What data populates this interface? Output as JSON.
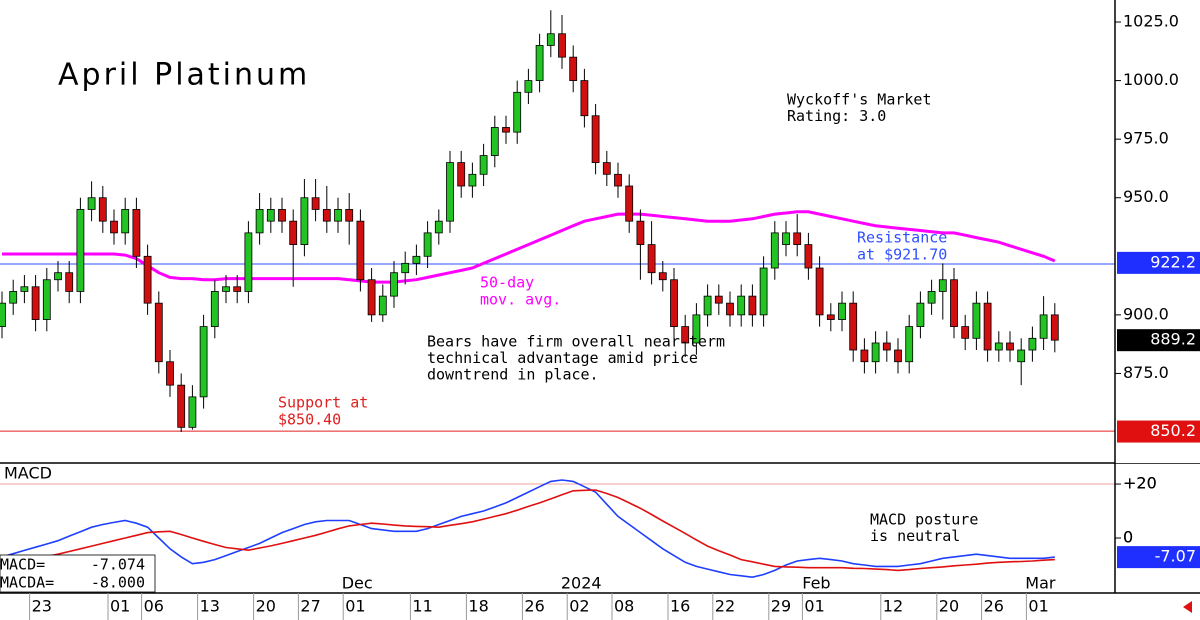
{
  "chart_data": {
    "type": "candlestick",
    "title": "April Platinum",
    "ylim": [
      837.2,
      1034.4
    ],
    "yticks": [
      {
        "value": 1025,
        "label": "1025.0"
      },
      {
        "value": 1000,
        "label": "1000.0"
      },
      {
        "value": 975,
        "label": "975.0"
      },
      {
        "value": 950,
        "label": "950.0"
      },
      {
        "value": 900,
        "label": "900.0"
      },
      {
        "value": 875,
        "label": "875.0"
      }
    ],
    "xticks": [
      {
        "value": 3,
        "label": "23"
      },
      {
        "value": 10,
        "label": "01"
      },
      {
        "value": 13,
        "label": "06"
      },
      {
        "value": 18,
        "label": "13"
      },
      {
        "value": 23,
        "label": "20"
      },
      {
        "value": 27,
        "label": "27"
      },
      {
        "value": 31,
        "label": "01"
      },
      {
        "value": 37,
        "label": "11"
      },
      {
        "value": 42,
        "label": "18"
      },
      {
        "value": 47,
        "label": "26"
      },
      {
        "value": 51,
        "label": "02"
      },
      {
        "value": 55,
        "label": "08"
      },
      {
        "value": 60,
        "label": "16"
      },
      {
        "value": 64,
        "label": "22"
      },
      {
        "value": 69,
        "label": "29"
      },
      {
        "value": 72,
        "label": "01"
      },
      {
        "value": 79,
        "label": "12"
      },
      {
        "value": 84,
        "label": "20"
      },
      {
        "value": 88,
        "label": "26"
      },
      {
        "value": 92,
        "label": "01"
      }
    ],
    "month_ticks": [
      {
        "value": 31,
        "label": "Dec"
      },
      {
        "value": 51,
        "label": "2024"
      },
      {
        "value": 72,
        "label": "Feb"
      },
      {
        "value": 92,
        "label": "Mar"
      }
    ],
    "up_color": "#22c322",
    "down_color": "#d01010",
    "candles": {
      "open": [
        895,
        905,
        910,
        912,
        898,
        915,
        918,
        910,
        945,
        950,
        940,
        935,
        945,
        925,
        905,
        880,
        870,
        852,
        865,
        895,
        910,
        912,
        910,
        935,
        940,
        945,
        940,
        930,
        950,
        945,
        940,
        945,
        940,
        915,
        900,
        908,
        918,
        922,
        925,
        935,
        940,
        965,
        955,
        960,
        968,
        980,
        978,
        995,
        1000,
        1015,
        1020,
        1010,
        1000,
        985,
        965,
        960,
        955,
        940,
        930,
        918,
        915,
        895,
        888,
        900,
        908,
        905,
        900,
        908,
        900,
        920,
        930,
        935,
        930,
        920,
        900,
        898,
        905,
        885,
        880,
        888,
        885,
        880,
        895,
        905,
        910,
        915,
        895,
        890,
        905,
        885,
        888,
        880,
        885,
        890,
        900
      ],
      "high": [
        910,
        915,
        917,
        917,
        920,
        923,
        923,
        950,
        957,
        955,
        945,
        950,
        950,
        930,
        910,
        885,
        875,
        870,
        900,
        915,
        917,
        917,
        940,
        952,
        950,
        950,
        945,
        958,
        958,
        955,
        950,
        952,
        945,
        920,
        913,
        923,
        927,
        930,
        940,
        945,
        970,
        970,
        965,
        973,
        985,
        985,
        1000,
        1005,
        1020,
        1030,
        1028,
        1015,
        1005,
        990,
        970,
        965,
        960,
        945,
        940,
        923,
        920,
        900,
        905,
        913,
        913,
        910,
        913,
        913,
        925,
        940,
        940,
        943,
        935,
        925,
        905,
        910,
        910,
        890,
        893,
        893,
        890,
        900,
        910,
        915,
        922,
        920,
        900,
        910,
        910,
        893,
        893,
        890,
        895,
        908,
        905
      ],
      "low": [
        890,
        900,
        905,
        893,
        893,
        910,
        905,
        905,
        940,
        935,
        930,
        930,
        920,
        900,
        875,
        865,
        850,
        851,
        860,
        890,
        905,
        905,
        905,
        930,
        935,
        935,
        912,
        925,
        940,
        935,
        935,
        930,
        910,
        897,
        897,
        903,
        913,
        917,
        920,
        930,
        935,
        950,
        950,
        955,
        963,
        973,
        973,
        990,
        995,
        1010,
        1005,
        995,
        980,
        960,
        955,
        950,
        935,
        915,
        913,
        910,
        890,
        882,
        883,
        895,
        900,
        895,
        895,
        895,
        895,
        915,
        925,
        925,
        915,
        895,
        893,
        893,
        880,
        875,
        875,
        880,
        875,
        875,
        890,
        900,
        898,
        890,
        885,
        885,
        880,
        880,
        880,
        870,
        880,
        885,
        884
      ],
      "close": [
        905,
        910,
        912,
        898,
        915,
        918,
        910,
        945,
        950,
        940,
        935,
        945,
        925,
        905,
        880,
        870,
        852,
        865,
        895,
        910,
        912,
        910,
        935,
        945,
        945,
        940,
        930,
        950,
        945,
        940,
        945,
        940,
        915,
        900,
        908,
        918,
        922,
        925,
        935,
        940,
        965,
        955,
        960,
        968,
        980,
        978,
        995,
        1000,
        1015,
        1020,
        1010,
        1000,
        985,
        965,
        960,
        955,
        940,
        930,
        918,
        915,
        895,
        888,
        900,
        908,
        905,
        900,
        908,
        900,
        920,
        935,
        935,
        930,
        920,
        900,
        898,
        905,
        885,
        880,
        888,
        885,
        880,
        895,
        905,
        910,
        915,
        895,
        890,
        905,
        885,
        888,
        885,
        885,
        890,
        900,
        889.2
      ]
    },
    "ma": {
      "name_lines": [
        "50-day",
        "mov. avg."
      ],
      "color": "#ff00ff",
      "values": [
        926,
        926,
        926,
        926,
        926,
        926,
        926,
        926,
        926,
        926,
        926,
        925.5,
        924,
        921,
        918,
        916,
        915.5,
        915.5,
        915,
        915,
        915.5,
        915.5,
        915.5,
        915.5,
        915.5,
        915.5,
        915.5,
        915.5,
        915.5,
        915.5,
        915.5,
        915,
        914.5,
        914,
        914,
        914,
        914.5,
        915,
        916,
        917,
        918,
        919,
        920,
        922,
        924,
        926,
        928,
        930,
        932,
        934,
        936,
        938,
        940,
        941,
        942,
        943,
        943,
        943,
        942.5,
        942,
        941.5,
        941,
        940.5,
        940,
        940,
        940,
        940.5,
        941,
        942,
        943,
        943.5,
        944,
        944,
        943,
        942,
        941,
        940,
        939,
        938,
        937.5,
        937,
        936.5,
        936,
        935.5,
        935,
        935,
        934,
        933,
        932,
        931,
        929.5,
        928,
        926.5,
        925,
        923
      ]
    },
    "levels": [
      {
        "value": 921.7,
        "color": "#3050ff",
        "label_lines": [
          "Resistance",
          "at $921.70"
        ]
      },
      {
        "value": 850.4,
        "color": "#e02020",
        "label_lines": [
          "Support at",
          "$850.40"
        ]
      }
    ],
    "price_tags": [
      {
        "value": 922.2,
        "color": "#1f2fff"
      },
      {
        "value": 850.2,
        "color": "#e01010"
      }
    ],
    "last_tag_color": "#000000",
    "annotations": [
      {
        "lines": [
          "Wyckoff's Market",
          "Rating: 3.0"
        ]
      },
      {
        "lines": [
          "Bears have firm overall near-term",
          "technical advantage amid price",
          "downtrend in place."
        ]
      },
      {
        "lines": [
          "MACD posture",
          "is neutral"
        ]
      }
    ],
    "macd": {
      "title": "MACD",
      "ylim": [
        -20,
        27.8
      ],
      "yticks": [
        {
          "value": 20,
          "label": "+20"
        },
        0
      ],
      "series": [
        {
          "name": "MACD=",
          "color": "#1f3fff",
          "tag_label": "-7.07",
          "values": [
            -7,
            -5.8,
            -4.6,
            -3.4,
            -2.2,
            -1,
            0.7,
            2.3,
            4,
            5,
            5.8,
            6.5,
            5.5,
            4,
            0,
            -4,
            -7,
            -9.5,
            -9,
            -8,
            -6.5,
            -5,
            -3.5,
            -2,
            0,
            2,
            3.5,
            5,
            6,
            6.5,
            6.5,
            6.5,
            5,
            3.5,
            3,
            2.5,
            2.5,
            2.5,
            3.5,
            5,
            6.5,
            8,
            9,
            10,
            11.5,
            13,
            15,
            17,
            19,
            21,
            21.5,
            21,
            19,
            17,
            12.5,
            8,
            5,
            2,
            -1,
            -4,
            -6.5,
            -9,
            -10.5,
            -11.5,
            -12.5,
            -13.5,
            -14,
            -14.5,
            -13.5,
            -12,
            -10,
            -8.5,
            -8,
            -7.5,
            -8,
            -8.5,
            -9.5,
            -10,
            -10.5,
            -10.5,
            -10.5,
            -10,
            -9.5,
            -8.5,
            -7.5,
            -7,
            -6.5,
            -6,
            -6.5,
            -7,
            -7.5,
            -7.5,
            -7.5,
            -7.5,
            -7.074
          ]
        },
        {
          "name": "MACDA=",
          "color": "#e01010",
          "readout_label": "-8.000",
          "values": [
            -10,
            -9.2,
            -8.4,
            -7.6,
            -6.8,
            -6,
            -5,
            -4,
            -3,
            -2,
            -1,
            0,
            1,
            2,
            2.3,
            2.5,
            1.3,
            0,
            -1.2,
            -2.4,
            -3.5,
            -4,
            -4.5,
            -3.7,
            -2.9,
            -2,
            -1,
            0,
            1,
            2.2,
            3.4,
            4.5,
            5,
            5.5,
            5.2,
            4.8,
            4.5,
            4.3,
            4.2,
            4,
            4.7,
            5.3,
            6,
            7,
            8,
            9,
            10.3,
            11.7,
            13,
            14.5,
            16,
            17.5,
            17.7,
            17.8,
            16.5,
            15,
            13,
            11,
            8.7,
            6.3,
            4,
            1.7,
            -0.7,
            -3,
            -4.7,
            -6.3,
            -8,
            -8.8,
            -9.7,
            -10.5,
            -10.7,
            -10.8,
            -11,
            -11,
            -11,
            -11,
            -11.2,
            -11.3,
            -11.5,
            -11.7,
            -12,
            -11.7,
            -11.3,
            -11,
            -10.7,
            -10.3,
            -10,
            -9.7,
            -9.3,
            -9,
            -8.8,
            -8.7,
            -8.5,
            -8.2,
            -8
          ]
        }
      ],
      "tag_color": "#1f2fff"
    }
  }
}
